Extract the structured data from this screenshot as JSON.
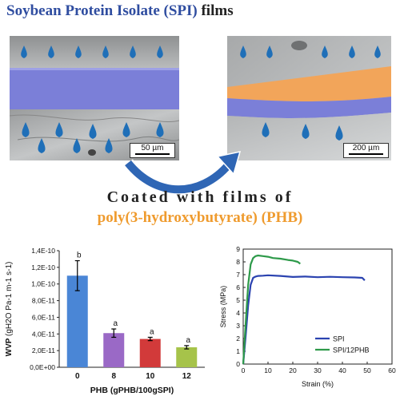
{
  "title": {
    "highlight": "Soybean Protein Isolate (SPI)",
    "rest": "films"
  },
  "left_image": {
    "scale_label": "50 µm"
  },
  "right_image": {
    "scale_label": "200 µm"
  },
  "caption": {
    "line1": "Coated with films of",
    "line2": "poly(3-hydroxybutyrate) (PHB)"
  },
  "colors": {
    "title_blue": "#2f4da0",
    "spi_layer": "#7b7fd8",
    "phb_layer": "#f2a55a",
    "drop": "#1f6fb8",
    "arrow": "#2f66b5",
    "caption_orange": "#ef9b2e"
  },
  "icons": [
    "water-drop-icon",
    "curved-arrow-icon"
  ],
  "chart_data": [
    {
      "type": "bar",
      "ylabel": "WVP (gH2O Pa-1 m-1 s-1)",
      "ylabel_parts": {
        "main": "WVP",
        "unit": "(gH2O Pa-1 m-1 s-1)"
      },
      "xlabel": "PHB (gPHB/100gSPI)",
      "categories": [
        "0",
        "8",
        "10",
        "12"
      ],
      "values": [
        1.1e-10,
        4.1e-11,
        3.4e-11,
        2.4e-11
      ],
      "errors": [
        1.8e-11,
        5e-12,
        2e-12,
        2e-12
      ],
      "letters": [
        "b",
        "a",
        "a",
        "a"
      ],
      "bar_colors": [
        "#4a86d6",
        "#9a69c6",
        "#d23a3a",
        "#a6c34a"
      ],
      "ylim": [
        0,
        1.4e-10
      ],
      "yticks": [
        "0,0E+00",
        "2,0E-11",
        "4,0E-11",
        "6,0E-11",
        "8,0E-11",
        "1,0E-10",
        "1,2E-10",
        "1,4E-10"
      ]
    },
    {
      "type": "line",
      "xlabel": "Strain (%)",
      "ylabel": "Stress (MPa)",
      "xlim": [
        0,
        60
      ],
      "ylim": [
        0,
        9
      ],
      "xticks": [
        "0",
        "10",
        "20",
        "30",
        "40",
        "50",
        "60"
      ],
      "yticks": [
        "0",
        "1",
        "2",
        "3",
        "4",
        "5",
        "6",
        "7",
        "8",
        "9"
      ],
      "legend_position": "bottom-right",
      "series": [
        {
          "name": "SPI",
          "color": "#2b43b0",
          "x": [
            0,
            1,
            2,
            3,
            4,
            5,
            6,
            8,
            10,
            15,
            20,
            25,
            30,
            35,
            40,
            45,
            48,
            49
          ],
          "y": [
            0,
            2.2,
            4.6,
            6.2,
            6.75,
            6.85,
            6.9,
            6.92,
            6.95,
            6.9,
            6.82,
            6.85,
            6.8,
            6.83,
            6.8,
            6.78,
            6.75,
            6.55
          ]
        },
        {
          "name": "SPI/12PHB",
          "color": "#2e9a4a",
          "x": [
            0,
            1,
            2,
            3,
            4,
            5,
            6,
            8,
            10,
            12,
            15,
            18,
            20,
            22,
            23
          ],
          "y": [
            0,
            3.2,
            6.2,
            7.8,
            8.3,
            8.45,
            8.5,
            8.45,
            8.4,
            8.3,
            8.25,
            8.15,
            8.1,
            8.0,
            7.85
          ]
        }
      ]
    }
  ]
}
